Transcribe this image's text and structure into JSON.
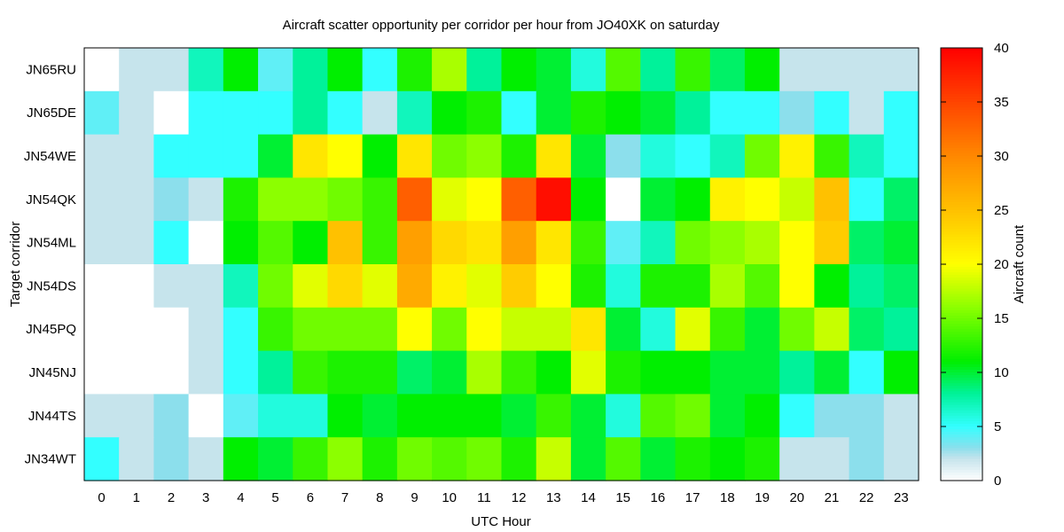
{
  "chart_data": {
    "type": "heatmap",
    "title": "Aircraft scatter opportunity per corridor per hour from JO40XK on saturday",
    "xlabel": "UTC Hour",
    "ylabel": "Target corridor",
    "colorbar_label": "Aircraft count",
    "x": [
      0,
      1,
      2,
      3,
      4,
      5,
      6,
      7,
      8,
      9,
      10,
      11,
      12,
      13,
      14,
      15,
      16,
      17,
      18,
      19,
      20,
      21,
      22,
      23
    ],
    "y": [
      "JN65RU",
      "JN65DE",
      "JN54WE",
      "JN54QK",
      "JN54ML",
      "JN54DS",
      "JN45PQ",
      "JN45NJ",
      "JN44TS",
      "JN34WT"
    ],
    "values": [
      [
        0,
        2,
        2,
        7,
        11,
        4,
        8,
        11,
        5,
        12,
        17,
        8,
        11,
        10,
        6,
        14,
        8,
        13,
        9,
        11,
        2,
        2,
        2,
        2
      ],
      [
        4,
        2,
        0,
        5,
        5,
        5,
        8,
        5,
        2,
        7,
        11,
        12,
        5,
        10,
        12,
        11,
        10,
        8,
        5,
        5,
        3,
        5,
        2,
        5
      ],
      [
        2,
        2,
        5,
        5,
        5,
        10,
        22,
        20,
        11,
        22,
        15,
        16,
        12,
        22,
        10,
        3,
        6,
        5,
        7,
        15,
        21,
        13,
        7,
        5
      ],
      [
        2,
        2,
        3,
        2,
        12,
        16,
        16,
        15,
        13,
        33,
        19,
        20,
        33,
        39,
        11,
        0,
        10,
        11,
        21,
        20,
        18,
        25,
        5,
        9
      ],
      [
        2,
        2,
        5,
        0,
        11,
        14,
        11,
        25,
        13,
        28,
        23,
        22,
        28,
        22,
        13,
        4,
        7,
        15,
        16,
        17,
        20,
        24,
        9,
        10
      ],
      [
        0,
        0,
        2,
        2,
        7,
        15,
        19,
        23,
        19,
        27,
        21,
        19,
        24,
        20,
        12,
        6,
        12,
        12,
        17,
        14,
        20,
        11,
        8,
        9
      ],
      [
        0,
        0,
        0,
        2,
        5,
        13,
        15,
        15,
        15,
        20,
        15,
        20,
        18,
        18,
        22,
        10,
        6,
        19,
        13,
        10,
        15,
        18,
        9,
        8
      ],
      [
        0,
        0,
        0,
        2,
        5,
        8,
        13,
        12,
        12,
        9,
        10,
        17,
        13,
        11,
        19,
        12,
        11,
        11,
        10,
        10,
        8,
        10,
        5,
        11
      ],
      [
        2,
        2,
        3,
        0,
        4,
        6,
        6,
        11,
        10,
        11,
        11,
        11,
        10,
        13,
        10,
        6,
        14,
        15,
        10,
        11,
        5,
        3,
        3,
        2
      ],
      [
        5,
        2,
        3,
        2,
        11,
        10,
        13,
        16,
        12,
        15,
        14,
        15,
        12,
        18,
        10,
        14,
        10,
        12,
        11,
        12,
        2,
        2,
        3,
        2
      ]
    ],
    "colorbar": {
      "min": 0,
      "max": 40,
      "ticks": [
        0,
        5,
        10,
        15,
        20,
        25,
        30,
        35,
        40
      ]
    },
    "colors": {
      "stops": [
        [
          0,
          "#ffffff"
        ],
        [
          2,
          "#c6e4ec"
        ],
        [
          3,
          "#8cdfec"
        ],
        [
          5,
          "#33ffff"
        ],
        [
          8,
          "#00f29a"
        ],
        [
          11,
          "#00ef00"
        ],
        [
          16,
          "#8cff00"
        ],
        [
          20,
          "#ffff00"
        ],
        [
          24,
          "#ffcc00"
        ],
        [
          30,
          "#ff8800"
        ],
        [
          40,
          "#ff0000"
        ]
      ]
    },
    "grid": false,
    "legend": "colorbar-right"
  }
}
